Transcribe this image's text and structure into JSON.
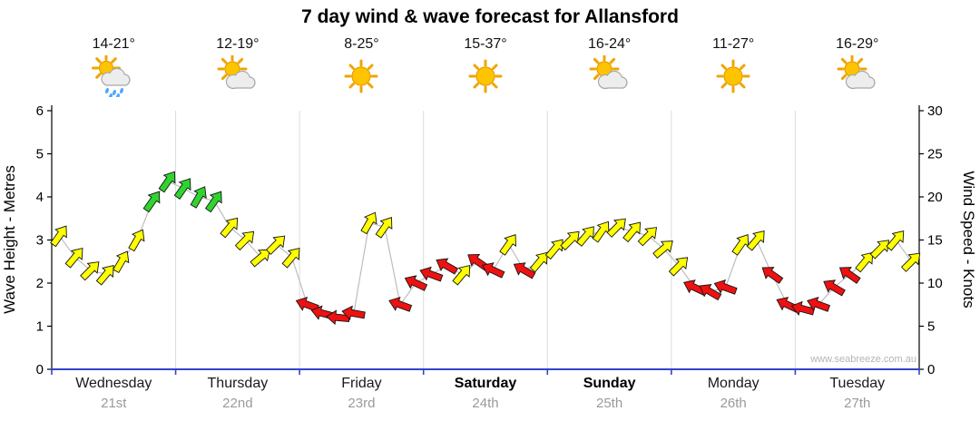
{
  "title": "7 day wind & wave forecast for Allansford",
  "watermark": "www.seabreeze.com.au",
  "axes": {
    "left_label": "Wave Height - Metres",
    "right_label": "Wind Speed - Knots",
    "left_ticks": [
      0,
      1,
      2,
      3,
      4,
      5,
      6
    ],
    "right_ticks": [
      0,
      5,
      10,
      15,
      20,
      25,
      30
    ]
  },
  "days": [
    {
      "name": "Wednesday",
      "date": "21st",
      "temp": "14-21°",
      "icon": "sun-rain",
      "bold": false
    },
    {
      "name": "Thursday",
      "date": "22nd",
      "temp": "12-19°",
      "icon": "sun-cloud",
      "bold": false
    },
    {
      "name": "Friday",
      "date": "23rd",
      "temp": "8-25°",
      "icon": "sun",
      "bold": false
    },
    {
      "name": "Saturday",
      "date": "24th",
      "temp": "15-37°",
      "icon": "sun",
      "bold": true
    },
    {
      "name": "Sunday",
      "date": "25th",
      "temp": "16-24°",
      "icon": "sun-cloud",
      "bold": true
    },
    {
      "name": "Monday",
      "date": "26th",
      "temp": "11-27°",
      "icon": "sun",
      "bold": false
    },
    {
      "name": "Tuesday",
      "date": "27th",
      "temp": "16-29°",
      "icon": "sun-cloud",
      "bold": false
    }
  ],
  "chart_data": {
    "type": "line",
    "title": "7 day wind & wave forecast for Allansford",
    "x_categories": [
      "Wednesday 21st",
      "Thursday 22nd",
      "Friday 23rd",
      "Saturday 24th",
      "Sunday 25th",
      "Monday 26th",
      "Tuesday 27th"
    ],
    "points_per_day": 8,
    "ylabel_left": "Wave Height - Metres",
    "ylim_left": [
      0,
      6
    ],
    "ylabel_right": "Wind Speed - Knots",
    "ylim_right": [
      0,
      30
    ],
    "grid": "vertical day separators",
    "legend": "none",
    "colors": {
      "x_axis": "#3344cc",
      "connector_line": "#bdbdbd"
    },
    "arrow_colors": {
      "g": "#2fd42f",
      "y": "#ffff00",
      "r": "#ee1111"
    },
    "point_format": [
      "knots",
      "color_key",
      "arrow_direction_deg_clockwise_from_east"
    ],
    "points": [
      [
        15.5,
        "y",
        -55
      ],
      [
        13,
        "y",
        -50
      ],
      [
        11.5,
        "y",
        -45
      ],
      [
        11,
        "y",
        -50
      ],
      [
        12.5,
        "y",
        -60
      ],
      [
        15,
        "y",
        -60
      ],
      [
        19.5,
        "g",
        -55
      ],
      [
        21.8,
        "g",
        -55
      ],
      [
        21,
        "g",
        -55
      ],
      [
        20,
        "g",
        -60
      ],
      [
        19.5,
        "g",
        -55
      ],
      [
        16.5,
        "y",
        -50
      ],
      [
        15,
        "y",
        -45
      ],
      [
        13,
        "y",
        -40
      ],
      [
        14.5,
        "y",
        -45
      ],
      [
        13,
        "y",
        -50
      ],
      [
        7.5,
        "r",
        200
      ],
      [
        6.5,
        "r",
        195
      ],
      [
        6,
        "r",
        185
      ],
      [
        6.5,
        "r",
        190
      ],
      [
        17,
        "y",
        -60
      ],
      [
        16.5,
        "y",
        -55
      ],
      [
        7.5,
        "r",
        200
      ],
      [
        10,
        "r",
        205
      ],
      [
        11,
        "r",
        200
      ],
      [
        12,
        "r",
        210
      ],
      [
        11,
        "y",
        -50
      ],
      [
        12.5,
        "r",
        215
      ],
      [
        11.5,
        "r",
        205
      ],
      [
        14.5,
        "y",
        -55
      ],
      [
        11.5,
        "r",
        210
      ],
      [
        12.5,
        "y",
        -50
      ],
      [
        14,
        "y",
        -50
      ],
      [
        15,
        "y",
        -45
      ],
      [
        15.5,
        "y",
        -50
      ],
      [
        16,
        "y",
        -55
      ],
      [
        16.5,
        "y",
        -45
      ],
      [
        16,
        "y",
        -50
      ],
      [
        15.5,
        "y",
        -45
      ],
      [
        14,
        "y",
        -40
      ],
      [
        12,
        "y",
        -45
      ],
      [
        9.5,
        "r",
        205
      ],
      [
        9,
        "r",
        210
      ],
      [
        9.5,
        "r",
        200
      ],
      [
        14.5,
        "y",
        -55
      ],
      [
        15,
        "y",
        -50
      ],
      [
        11,
        "r",
        215
      ],
      [
        7.5,
        "r",
        205
      ],
      [
        7,
        "r",
        195
      ],
      [
        7.5,
        "r",
        200
      ],
      [
        9.5,
        "r",
        210
      ],
      [
        11,
        "r",
        215
      ],
      [
        12.5,
        "y",
        -50
      ],
      [
        14,
        "y",
        -45
      ],
      [
        15,
        "y",
        -50
      ],
      [
        12.5,
        "y",
        -45
      ]
    ]
  }
}
